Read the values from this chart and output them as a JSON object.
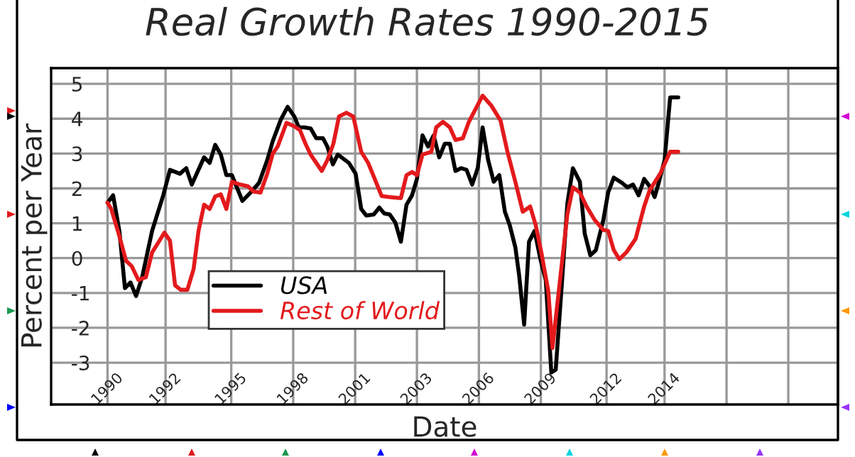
{
  "chart_data": {
    "type": "line",
    "title": "Real Growth Rates 1990-2015",
    "xlabel": "Date",
    "ylabel": "Percent per Year",
    "x": [
      1990.0,
      1990.24,
      1990.51,
      1990.75,
      1990.99,
      1991.23,
      1991.49,
      1991.92,
      1992.4,
      1992.69,
      1993.12,
      1993.39,
      1993.63,
      1994.16,
      1994.4,
      1994.64,
      1994.88,
      1995.12,
      1995.36,
      1995.81,
      1996.16,
      1996.53,
      1996.88,
      1997.12,
      1997.47,
      1997.76,
      1998.05,
      1998.24,
      1998.48,
      1998.75,
      1998.99,
      1999.28,
      1999.47,
      1999.71,
      1999.92,
      2000.4,
      2000.69,
      2000.93,
      2001.15,
      2001.47,
      2001.71,
      2001.92,
      2002.16,
      2002.4,
      2002.64,
      2002.88,
      2003.12,
      2003.33,
      2003.57,
      2003.81,
      2004.05,
      2004.29,
      2004.53,
      2004.75,
      2004.99,
      2005.23,
      2005.47,
      2005.71,
      2005.95,
      2006.16,
      2006.4,
      2006.64,
      2006.88,
      2007.12,
      2007.33,
      2007.57,
      2007.73,
      2007.95,
      2008.16,
      2008.4,
      2008.64,
      2008.88,
      2009.12,
      2009.31,
      2009.57,
      2009.81,
      2010.05,
      2010.35,
      2010.56,
      2010.8,
      2011.04,
      2011.36,
      2011.57,
      2011.81,
      2012.16,
      2012.4,
      2012.64,
      2012.88,
      2013.12,
      2013.39,
      2013.57,
      2013.76,
      2014.0,
      2014.24,
      2014.59
    ],
    "series": [
      {
        "name": "USA",
        "color": "#000000",
        "values": [
          1.59,
          1.8,
          0.78,
          -0.86,
          -0.7,
          -1.09,
          -0.55,
          0.78,
          1.8,
          2.53,
          2.42,
          2.58,
          2.11,
          2.89,
          2.73,
          3.25,
          2.97,
          2.38,
          2.38,
          1.64,
          1.88,
          2.16,
          2.81,
          3.36,
          3.98,
          4.34,
          4.06,
          3.75,
          3.75,
          3.72,
          3.44,
          3.44,
          3.2,
          2.69,
          2.97,
          2.73,
          2.42,
          1.41,
          1.22,
          1.25,
          1.45,
          1.28,
          1.25,
          1.02,
          0.47,
          1.53,
          1.8,
          2.27,
          3.52,
          3.2,
          3.52,
          2.89,
          3.28,
          3.28,
          2.5,
          2.58,
          2.53,
          2.11,
          2.58,
          3.75,
          2.81,
          2.19,
          2.38,
          1.33,
          0.94,
          0.31,
          -0.47,
          -1.91,
          0.47,
          0.78,
          0.0,
          -0.63,
          -3.28,
          -3.2,
          -0.78,
          1.56,
          2.58,
          2.19,
          0.7,
          0.08,
          0.23,
          1.09,
          1.88,
          2.31,
          2.16,
          2.03,
          2.11,
          1.8,
          2.27,
          2.03,
          1.75,
          2.19,
          2.81,
          4.61,
          4.61
        ]
      },
      {
        "name": "Rest of World",
        "color": "#e31a1c",
        "x": [
          1990.0,
          1990.16,
          1990.51,
          1990.8,
          1991.04,
          1991.33,
          1991.65,
          1991.92,
          1992.21,
          1992.45,
          1992.69,
          1992.91,
          1993.15,
          1993.44,
          1993.71,
          1993.92,
          1994.16,
          1994.4,
          1994.64,
          1994.88,
          1995.12,
          1995.36,
          1995.71,
          1996.05,
          1996.29,
          1996.59,
          1996.88,
          1997.12,
          1997.33,
          1997.71,
          1998.05,
          1998.29,
          1998.53,
          1998.75,
          1999.23,
          1999.47,
          1999.73,
          1999.97,
          2000.29,
          2000.59,
          2000.93,
          2001.23,
          2001.47,
          2001.81,
          2002.16,
          2002.64,
          2002.88,
          2003.12,
          2003.33,
          2003.57,
          2003.95,
          2004.16,
          2004.45,
          2004.75,
          2004.99,
          2005.31,
          2005.57,
          2006.16,
          2006.53,
          2006.93,
          2007.23,
          2007.57,
          2007.89,
          2008.21,
          2008.45,
          2008.69,
          2008.99,
          2009.17,
          2009.47,
          2009.81,
          2010.05,
          2010.35,
          2010.64,
          2010.99,
          2011.36,
          2011.57,
          2011.81,
          2012.05,
          2012.35,
          2012.75,
          2013.12,
          2013.36,
          2013.81,
          2014.24,
          2014.59
        ],
        "values": [
          1.59,
          1.41,
          0.63,
          -0.08,
          -0.23,
          -0.63,
          -0.55,
          0.16,
          0.47,
          0.73,
          0.5,
          -0.78,
          -0.91,
          -0.91,
          -0.31,
          0.78,
          1.53,
          1.41,
          1.77,
          1.83,
          1.41,
          2.19,
          2.11,
          2.06,
          1.91,
          1.88,
          2.42,
          3.0,
          3.2,
          3.88,
          3.78,
          3.67,
          3.28,
          2.97,
          2.5,
          2.81,
          3.28,
          4.06,
          4.17,
          4.06,
          3.05,
          2.73,
          2.34,
          1.78,
          1.75,
          1.72,
          2.38,
          2.47,
          2.38,
          2.97,
          3.05,
          3.75,
          3.91,
          3.75,
          3.39,
          3.44,
          3.91,
          4.66,
          4.38,
          3.95,
          3.05,
          2.19,
          1.33,
          1.48,
          0.94,
          0.16,
          -0.94,
          -2.58,
          -0.78,
          1.25,
          2.03,
          1.88,
          1.48,
          1.09,
          0.81,
          0.78,
          0.23,
          -0.03,
          0.16,
          0.55,
          1.48,
          1.95,
          2.42,
          3.05,
          3.05
        ]
      }
    ],
    "xlim": [
      1987.57,
      2021.47
    ],
    "ylim": [
      -4.2,
      5.45
    ],
    "xticks": [
      1990,
      {
        "value": 1992.5,
        "label": "1992"
      },
      {
        "value": 1995.33,
        "label": "1995"
      },
      1998,
      {
        "value": 2000.67,
        "label": "2001"
      },
      {
        "value": 2003.33,
        "label": "2003"
      },
      2006,
      {
        "value": 2008.67,
        "label": "2009"
      },
      {
        "value": 2011.5,
        "label": "2012"
      },
      2014,
      {
        "value": 2016.67,
        "label": null
      },
      {
        "value": 2019.33,
        "label": null
      }
    ],
    "yticks": [
      -3,
      -2,
      -1,
      0,
      1,
      2,
      3,
      4,
      5
    ],
    "grid": true,
    "legend": "bottom",
    "line_style": "solid",
    "marker": "none"
  }
}
